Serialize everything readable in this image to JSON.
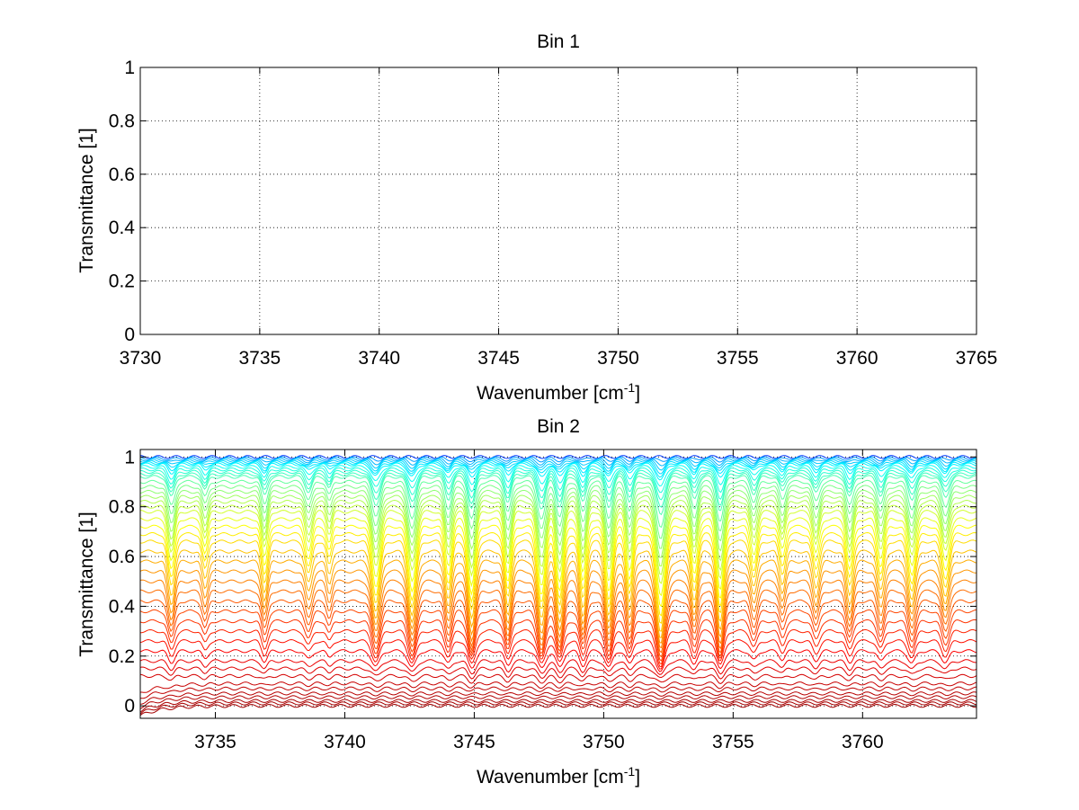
{
  "figure_background": "#ffffff",
  "chart_data": [
    {
      "type": "line",
      "title": "Bin 1",
      "xlabel": "Wavenumber [cm",
      "xlabel_sup": "-1",
      "xlabel_end": "]",
      "ylabel": "Transmittance [1]",
      "xlim": [
        3730,
        3765
      ],
      "ylim": [
        0,
        1
      ],
      "xticks": [
        3730,
        3735,
        3740,
        3745,
        3750,
        3755,
        3760,
        3765
      ],
      "yticks": [
        0,
        0.2,
        0.4,
        0.6,
        0.8,
        1
      ],
      "grid": true,
      "series": []
    },
    {
      "type": "line",
      "title": "Bin 2",
      "xlabel": "Wavenumber [cm",
      "xlabel_sup": "-1",
      "xlabel_end": "]",
      "ylabel": "Transmittance [1]",
      "xlim": [
        3732.1,
        3764.4
      ],
      "ylim": [
        -0.05,
        1.03
      ],
      "xticks": [
        3735,
        3740,
        3745,
        3750,
        3755,
        3760
      ],
      "yticks": [
        0,
        0.2,
        0.4,
        0.6,
        0.8,
        1
      ],
      "grid": true,
      "colormap": "jet",
      "num_series": 44,
      "baseline_levels": [
        1.0,
        0.995,
        0.99,
        0.985,
        0.98,
        0.975,
        0.97,
        0.96,
        0.95,
        0.94,
        0.93,
        0.92,
        0.9,
        0.88,
        0.86,
        0.84,
        0.82,
        0.8,
        0.78,
        0.75,
        0.72,
        0.69,
        0.66,
        0.62,
        0.58,
        0.54,
        0.5,
        0.46,
        0.42,
        0.38,
        0.34,
        0.3,
        0.26,
        0.22,
        0.18,
        0.15,
        0.12,
        0.09,
        0.07,
        0.05,
        0.035,
        0.02,
        0.01,
        0.0
      ],
      "absorption_lines": [
        {
          "x": 3733.3,
          "depth": 0.55,
          "width": 0.18
        },
        {
          "x": 3734.6,
          "depth": 0.35,
          "width": 0.15
        },
        {
          "x": 3736.9,
          "depth": 0.5,
          "width": 0.16
        },
        {
          "x": 3738.6,
          "depth": 0.4,
          "width": 0.18
        },
        {
          "x": 3739.4,
          "depth": 0.3,
          "width": 0.14
        },
        {
          "x": 3741.2,
          "depth": 0.75,
          "width": 0.22
        },
        {
          "x": 3742.6,
          "depth": 0.8,
          "width": 0.22
        },
        {
          "x": 3744.0,
          "depth": 0.6,
          "width": 0.18
        },
        {
          "x": 3744.9,
          "depth": 0.85,
          "width": 0.2
        },
        {
          "x": 3746.3,
          "depth": 0.7,
          "width": 0.18
        },
        {
          "x": 3747.6,
          "depth": 0.85,
          "width": 0.22
        },
        {
          "x": 3748.3,
          "depth": 0.8,
          "width": 0.2
        },
        {
          "x": 3749.2,
          "depth": 0.7,
          "width": 0.18
        },
        {
          "x": 3750.2,
          "depth": 0.8,
          "width": 0.2
        },
        {
          "x": 3751.0,
          "depth": 0.65,
          "width": 0.18
        },
        {
          "x": 3752.2,
          "depth": 1.0,
          "width": 0.24
        },
        {
          "x": 3753.5,
          "depth": 0.6,
          "width": 0.18
        },
        {
          "x": 3754.5,
          "depth": 0.9,
          "width": 0.2
        },
        {
          "x": 3755.8,
          "depth": 0.45,
          "width": 0.18
        },
        {
          "x": 3756.9,
          "depth": 0.4,
          "width": 0.16
        },
        {
          "x": 3758.2,
          "depth": 0.45,
          "width": 0.18
        },
        {
          "x": 3759.5,
          "depth": 0.55,
          "width": 0.18
        },
        {
          "x": 3760.7,
          "depth": 0.5,
          "width": 0.18
        },
        {
          "x": 3761.9,
          "depth": 0.6,
          "width": 0.2
        },
        {
          "x": 3763.2,
          "depth": 0.55,
          "width": 0.2
        }
      ]
    }
  ]
}
